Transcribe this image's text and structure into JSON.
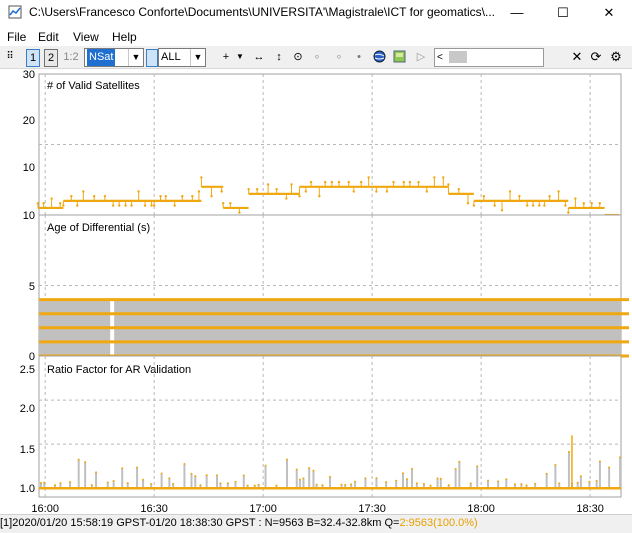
{
  "window": {
    "title": "C:\\Users\\Francesco Conforte\\Documents\\UNIVERSITA'\\Magistrale\\ICT for geomatics\\...",
    "minimize": "—",
    "maximize": "☐",
    "close": "✕"
  },
  "menu": [
    "File",
    "Edit",
    "View",
    "Help"
  ],
  "toolbar": {
    "btn1": "1",
    "btn2": "2",
    "btn12": "1:2",
    "plot_type": "NSat",
    "sat_filter": "ALL"
  },
  "icons": {
    "app": "rtkplot-app-icon",
    "crosshair": "crosshair-icon",
    "fit_horizontal": "fit-horizontal-icon",
    "fit_vertical": "fit-vertical-icon",
    "center": "center-icon",
    "show_track": "globe-icon",
    "map": "map-icon",
    "close": "close-icon",
    "reload": "reload-icon",
    "options": "gear-icon"
  },
  "status": {
    "text": "[1]2020/01/20 15:58:19 GPST-01/20 18:38:30 GPST : N=9563 B=32.4-32.8km Q=",
    "quality": "2:9563(100.0%)"
  },
  "colors": {
    "series": "#f0a810",
    "bar": "#c0c0c0",
    "grid": "#b8b8b8"
  },
  "chart_data": [
    {
      "type": "line",
      "title": "# of Valid Satellites",
      "ylim": [
        10,
        30
      ],
      "yticks": [
        "30",
        "20",
        "10"
      ],
      "x": [
        "16:00",
        "16:30",
        "17:00",
        "17:30",
        "18:00",
        "18:30"
      ],
      "series": [
        {
          "values_at_x": [
            11,
            12,
            13,
            14,
            12,
            11
          ],
          "segments": [
            {
              "from": "15:58",
              "to": "16:05",
              "value": 11
            },
            {
              "from": "16:05",
              "to": "16:30",
              "value": 12
            },
            {
              "from": "16:30",
              "to": "16:43",
              "value": 12
            },
            {
              "from": "16:43",
              "to": "16:49",
              "value": 14
            },
            {
              "from": "16:49",
              "to": "16:56",
              "value": 11
            },
            {
              "from": "16:56",
              "to": "17:10",
              "value": 13
            },
            {
              "from": "17:10",
              "to": "17:51",
              "value": 14
            },
            {
              "from": "17:51",
              "to": "17:58",
              "value": 13
            },
            {
              "from": "17:58",
              "to": "18:24",
              "value": 12
            },
            {
              "from": "18:24",
              "to": "18:34",
              "value": 11
            },
            {
              "from": "18:34",
              "to": "18:38",
              "value": 10
            }
          ]
        }
      ]
    },
    {
      "type": "bar",
      "title": "Age of Differential (s)",
      "ylim": [
        0,
        10
      ],
      "yticks": [
        "10",
        "5",
        "0"
      ],
      "x": [
        "16:00",
        "16:30",
        "17:00",
        "17:30",
        "18:00",
        "18:30"
      ],
      "series": [
        {
          "values": [
            4,
            4,
            4,
            4,
            4,
            4
          ],
          "levels": [
            0,
            1,
            2,
            3,
            4
          ]
        }
      ]
    },
    {
      "type": "bar",
      "title": "Ratio Factor for AR Validation",
      "ylim": [
        0.9,
        2.5
      ],
      "yticks": [
        "2.5",
        "2.0",
        "1.5",
        "1.0"
      ],
      "x": [
        "16:00",
        "16:30",
        "17:00",
        "17:30",
        "18:00",
        "18:30"
      ],
      "series": [
        {
          "baseline": 1.0,
          "values": [
            1.0,
            1.0,
            1.0,
            1.0,
            1.0,
            1.0
          ],
          "max_spike": 1.6
        }
      ]
    }
  ],
  "xaxis": {
    "ticks": [
      "16:00",
      "16:30",
      "17:00",
      "17:30",
      "18:00",
      "18:30"
    ]
  }
}
